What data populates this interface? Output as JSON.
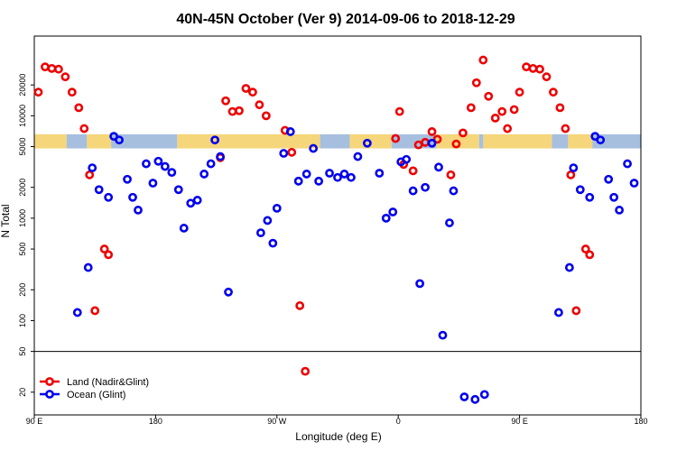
{
  "chart_data": {
    "type": "scatter",
    "title": "40N-45N October (Ver 9)   2014-09-06 to 2018-12-29",
    "xlabel": "Longitude (deg E)",
    "ylabel": "N Total",
    "y_scale": "log",
    "xlim": [
      90,
      540
    ],
    "ylim": [
      12,
      60000
    ],
    "y_break": 50,
    "x_ticks": [
      {
        "value": 90,
        "label": "90 E"
      },
      {
        "value": 180,
        "label": "180"
      },
      {
        "value": 270,
        "label": "90 W"
      },
      {
        "value": 360,
        "label": "0"
      },
      {
        "value": 450,
        "label": "90 E"
      },
      {
        "value": 540,
        "label": "180"
      }
    ],
    "y_ticks": [
      {
        "value": 20,
        "label": "20"
      },
      {
        "value": 50,
        "label": "50"
      },
      {
        "value": 100,
        "label": "100"
      },
      {
        "value": 200,
        "label": "200"
      },
      {
        "value": 500,
        "label": "500"
      },
      {
        "value": 1000,
        "label": "1000"
      },
      {
        "value": 2000,
        "label": "2000"
      },
      {
        "value": 5000,
        "label": "5000"
      },
      {
        "value": 10000,
        "label": "10000"
      },
      {
        "value": 20000,
        "label": "20000"
      }
    ],
    "legend_position": "bottom-left",
    "series": [
      {
        "name": "Land (Nadir&Glint)",
        "color": "#ee0000",
        "points": [
          [
            93,
            17000
          ],
          [
            98,
            30000
          ],
          [
            103,
            29000
          ],
          [
            108,
            28500
          ],
          [
            113,
            24000
          ],
          [
            118,
            17000
          ],
          [
            123,
            12000
          ],
          [
            127,
            7500
          ],
          [
            131,
            2650
          ],
          [
            135,
            125
          ],
          [
            142,
            500
          ],
          [
            145,
            440
          ],
          [
            228,
            3900
          ],
          [
            232,
            14000
          ],
          [
            237,
            11000
          ],
          [
            242,
            11200
          ],
          [
            247,
            18500
          ],
          [
            252,
            17000
          ],
          [
            257,
            12800
          ],
          [
            262,
            10000
          ],
          [
            276,
            7200
          ],
          [
            281,
            4400
          ],
          [
            287,
            140
          ],
          [
            291,
            32
          ],
          [
            358,
            6000
          ],
          [
            361,
            11000
          ],
          [
            364,
            3350
          ],
          [
            371,
            2900
          ],
          [
            375,
            5200
          ],
          [
            380,
            5500
          ],
          [
            385,
            7000
          ],
          [
            389,
            5900
          ],
          [
            399,
            2650
          ],
          [
            403,
            5300
          ],
          [
            408,
            6800
          ],
          [
            414,
            12000
          ],
          [
            418,
            21000
          ],
          [
            423,
            35000
          ],
          [
            427,
            15500
          ],
          [
            432,
            9500
          ],
          [
            437,
            11000
          ],
          [
            441,
            7500
          ],
          [
            446,
            11500
          ],
          [
            450,
            17000
          ],
          [
            455,
            30000
          ],
          [
            460,
            29000
          ],
          [
            465,
            28500
          ],
          [
            470,
            24000
          ],
          [
            475,
            17000
          ],
          [
            480,
            12000
          ],
          [
            484,
            7500
          ],
          [
            488,
            2650
          ],
          [
            492,
            125
          ],
          [
            499,
            500
          ],
          [
            502,
            440
          ]
        ]
      },
      {
        "name": "Ocean (Glint)",
        "color": "#0000ee",
        "points": [
          [
            122,
            120
          ],
          [
            130,
            330
          ],
          [
            133,
            3100
          ],
          [
            138,
            1900
          ],
          [
            145,
            1600
          ],
          [
            149,
            6300
          ],
          [
            153,
            5800
          ],
          [
            159,
            2400
          ],
          [
            163,
            1600
          ],
          [
            167,
            1200
          ],
          [
            173,
            3400
          ],
          [
            178,
            2200
          ],
          [
            182,
            3600
          ],
          [
            187,
            3200
          ],
          [
            192,
            2800
          ],
          [
            197,
            1900
          ],
          [
            201,
            800
          ],
          [
            206,
            1400
          ],
          [
            211,
            1500
          ],
          [
            216,
            2700
          ],
          [
            221,
            3400
          ],
          [
            224,
            5800
          ],
          [
            228,
            4000
          ],
          [
            234,
            190
          ],
          [
            258,
            720
          ],
          [
            263,
            950
          ],
          [
            267,
            570
          ],
          [
            270,
            1250
          ],
          [
            275,
            4300
          ],
          [
            280,
            7000
          ],
          [
            286,
            2300
          ],
          [
            292,
            2700
          ],
          [
            297,
            4800
          ],
          [
            301,
            2300
          ],
          [
            309,
            2750
          ],
          [
            315,
            2500
          ],
          [
            320,
            2700
          ],
          [
            325,
            2500
          ],
          [
            330,
            4000
          ],
          [
            337,
            5400
          ],
          [
            346,
            2750
          ],
          [
            351,
            1000
          ],
          [
            356,
            1150
          ],
          [
            362,
            3550
          ],
          [
            366,
            3750
          ],
          [
            371,
            1850
          ],
          [
            376,
            230
          ],
          [
            380,
            2000
          ],
          [
            385,
            5400
          ],
          [
            390,
            3150
          ],
          [
            393,
            72
          ],
          [
            398,
            900
          ],
          [
            401,
            1850
          ],
          [
            409,
            18
          ],
          [
            417,
            17
          ],
          [
            424,
            19
          ],
          [
            479,
            120
          ],
          [
            487,
            330
          ],
          [
            490,
            3100
          ],
          [
            495,
            1900
          ],
          [
            502,
            1600
          ],
          [
            506,
            6300
          ],
          [
            510,
            5800
          ],
          [
            516,
            2400
          ],
          [
            520,
            1600
          ],
          [
            524,
            1200
          ],
          [
            530,
            3400
          ],
          [
            535,
            2200
          ]
        ]
      }
    ]
  }
}
